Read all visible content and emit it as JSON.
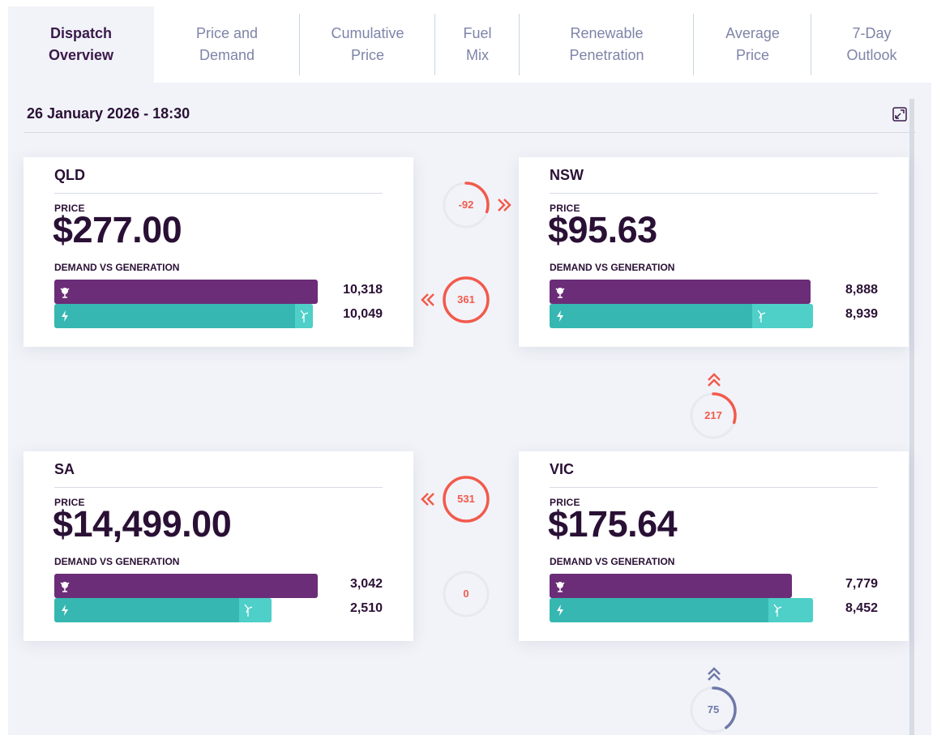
{
  "tabs": [
    {
      "line1": "Dispatch",
      "line2": "Overview"
    },
    {
      "line1": "Price and",
      "line2": "Demand"
    },
    {
      "line1": "Cumulative",
      "line2": "Price"
    },
    {
      "line1": "Fuel",
      "line2": "Mix"
    },
    {
      "line1": "Renewable",
      "line2": "Penetration"
    },
    {
      "line1": "Average",
      "line2": "Price"
    },
    {
      "line1": "7-Day",
      "line2": "Outlook"
    }
  ],
  "header": {
    "datetime": "26 January 2026 - 18:30"
  },
  "labels": {
    "price": "PRICE",
    "demand_vs_generation": "DEMAND VS GENERATION"
  },
  "regions": {
    "qld": {
      "name": "QLD",
      "price": "$277.00",
      "demand": "10,318",
      "generation": "10,049",
      "demand_fraction": 1.0,
      "generation_fraction": 0.98,
      "renewable_fraction": 0.055
    },
    "nsw": {
      "name": "NSW",
      "price": "$95.63",
      "demand": "8,888",
      "generation": "8,939",
      "demand_fraction": 0.99,
      "generation_fraction": 1.0,
      "renewable_fraction": 0.23
    },
    "sa": {
      "name": "SA",
      "price": "$14,499.00",
      "demand": "3,042",
      "generation": "2,510",
      "demand_fraction": 1.0,
      "generation_fraction": 0.825,
      "renewable_fraction": 0.15
    },
    "vic": {
      "name": "VIC",
      "price": "$175.64",
      "demand": "7,779",
      "generation": "8,452",
      "demand_fraction": 0.92,
      "generation_fraction": 1.0,
      "renewable_fraction": 0.17
    }
  },
  "interconnectors": {
    "qld_nsw": {
      "value": "-92",
      "direction": "right",
      "fill": 0.3
    },
    "nsw_qld": {
      "value": "361",
      "direction": "left",
      "fill": 1.0
    },
    "nsw_vic": {
      "value": "217",
      "direction": "up",
      "fill": 0.3
    },
    "vic_sa": {
      "value": "531",
      "direction": "left",
      "fill": 1.0
    },
    "sa_vic": {
      "value": "0",
      "direction": "none",
      "fill": 0.0
    },
    "vic_tas": {
      "value": "75",
      "direction": "up",
      "fill": 0.4
    }
  },
  "colors": {
    "demand": "#6b2d78",
    "generation": "#36b7b1",
    "renewable": "#4ecfc8",
    "flow_red": "#f25a4c",
    "flow_blue": "#6f78a8",
    "ring_track": "#e6e9f0"
  },
  "icons": {
    "demand": "demand-icon",
    "generation": "lightning-icon",
    "renewable": "wind-turbine-icon",
    "expand": "expand-icon",
    "chevron": "chevron-icon"
  }
}
